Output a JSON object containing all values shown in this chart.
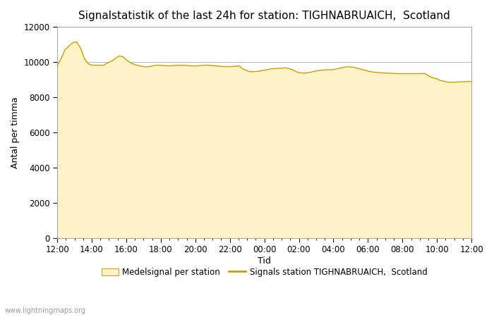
{
  "title": "Signalstatistik of the last 24h for station: TIGHNABRUAICH,  Scotland",
  "xlabel": "Tid",
  "ylabel": "Antal per timma",
  "watermark": "www.lightningmaps.org",
  "legend_fill_label": "Medelsignal per station",
  "legend_line_label": "Signals station TIGHNABRUAICH,  Scotland",
  "fill_color": "#fdf2c8",
  "fill_edge_color": "#d4a800",
  "line_color": "#c8a000",
  "background_color": "#ffffff",
  "grid_color": "#bbbbbb",
  "ylim": [
    0,
    12000
  ],
  "yticks": [
    0,
    2000,
    4000,
    6000,
    8000,
    10000,
    12000
  ],
  "x_labels": [
    "12:00",
    "14:00",
    "16:00",
    "18:00",
    "20:00",
    "22:00",
    "00:00",
    "02:00",
    "04:00",
    "06:00",
    "08:00",
    "10:00",
    "12:00"
  ],
  "x_values": [
    0,
    2,
    4,
    6,
    8,
    10,
    12,
    14,
    16,
    18,
    20,
    22,
    24
  ],
  "fill_y": [
    9800,
    10200,
    10700,
    10900,
    11100,
    11150,
    10800,
    10200,
    9900,
    9820,
    9820,
    9820,
    9820,
    9950,
    10050,
    10200,
    10350,
    10300,
    10100,
    9950,
    9850,
    9800,
    9750,
    9720,
    9750,
    9800,
    9820,
    9810,
    9790,
    9780,
    9800,
    9810,
    9820,
    9810,
    9790,
    9780,
    9780,
    9800,
    9820,
    9820,
    9800,
    9780,
    9760,
    9740,
    9740,
    9740,
    9760,
    9780,
    9600,
    9500,
    9450,
    9450,
    9480,
    9520,
    9550,
    9600,
    9630,
    9640,
    9650,
    9670,
    9620,
    9540,
    9420,
    9380,
    9370,
    9400,
    9450,
    9500,
    9530,
    9550,
    9560,
    9560,
    9600,
    9650,
    9700,
    9730,
    9720,
    9680,
    9620,
    9560,
    9500,
    9450,
    9420,
    9400,
    9380,
    9370,
    9360,
    9350,
    9340,
    9340,
    9340,
    9340,
    9340,
    9340,
    9340,
    9350,
    9200,
    9100,
    9050,
    8950,
    8900,
    8850,
    8850,
    8860,
    8870,
    8880,
    8890,
    8900
  ],
  "title_fontsize": 11,
  "axis_label_fontsize": 9,
  "tick_fontsize": 8.5,
  "watermark_fontsize": 7
}
